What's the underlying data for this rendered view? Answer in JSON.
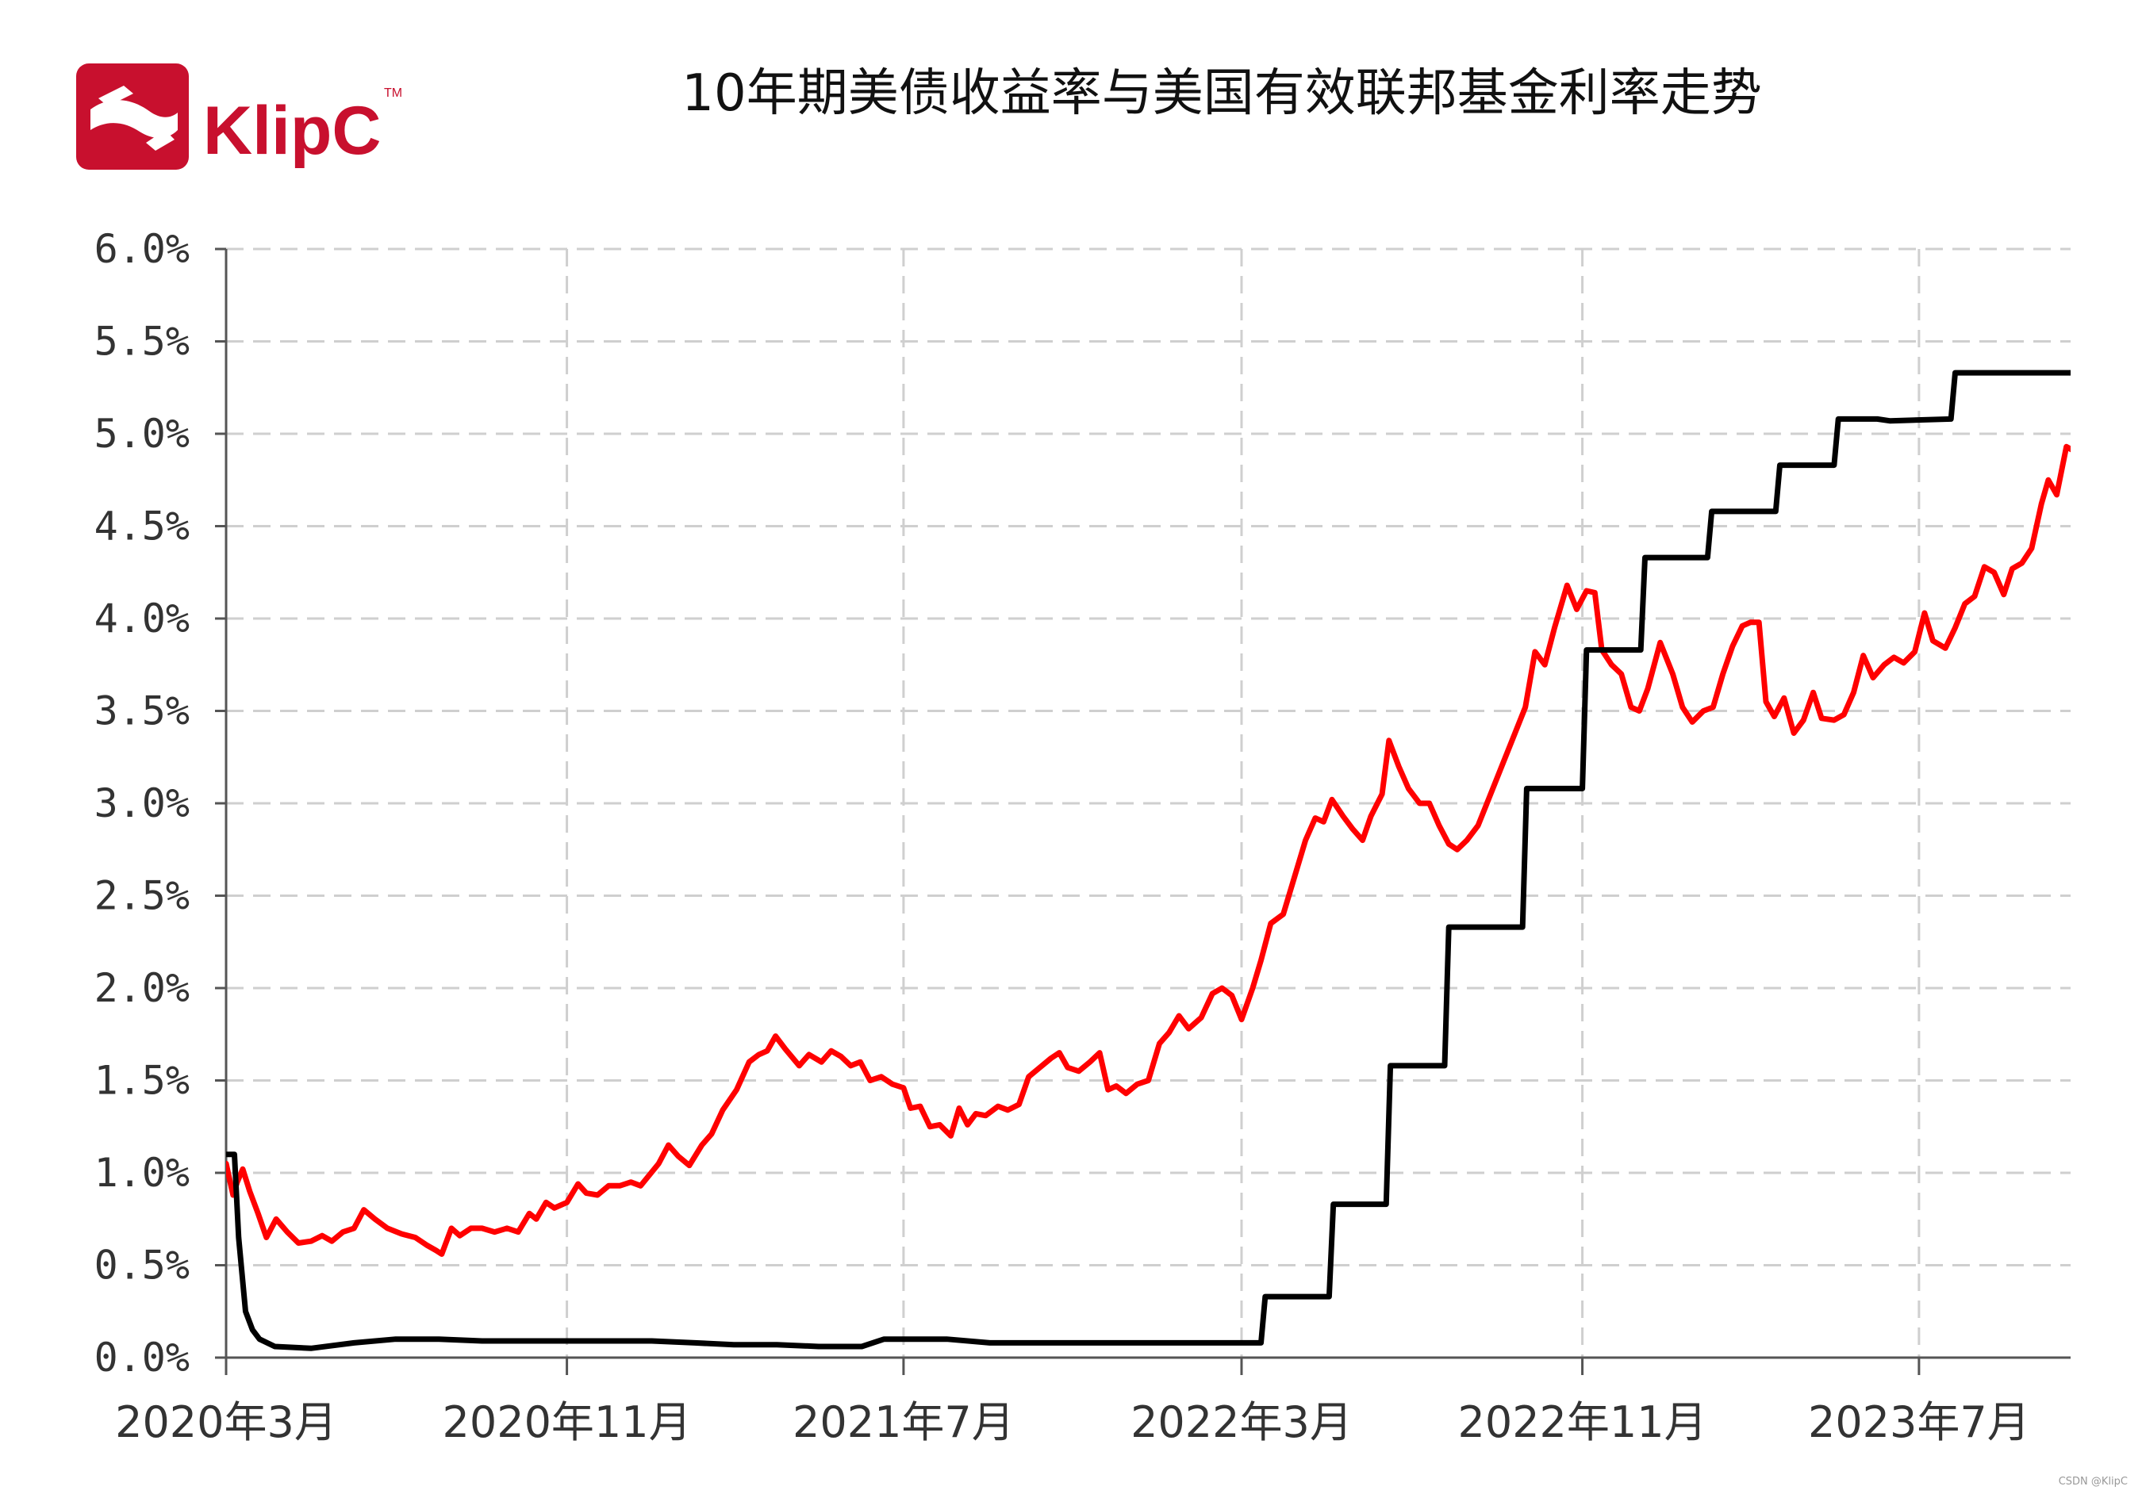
{
  "logo": {
    "text": "KlipC",
    "tm": "TM",
    "icon": "klipc-logo-icon",
    "color": "#c8102e"
  },
  "chart_data": {
    "type": "line",
    "title": "10年期美债收益率与美国有效联邦基金利率走势",
    "xlabel": "",
    "ylabel": "",
    "xlim": [
      "2020-03-01",
      "2023-10-18"
    ],
    "ylim": [
      0,
      6.0
    ],
    "y_ticks": [
      {
        "value": 0.0,
        "label": "0.0%"
      },
      {
        "value": 0.5,
        "label": "0.5%"
      },
      {
        "value": 1.0,
        "label": "1.0%"
      },
      {
        "value": 1.5,
        "label": "1.5%"
      },
      {
        "value": 2.0,
        "label": "2.0%"
      },
      {
        "value": 2.5,
        "label": "2.5%"
      },
      {
        "value": 3.0,
        "label": "3.0%"
      },
      {
        "value": 3.5,
        "label": "3.5%"
      },
      {
        "value": 4.0,
        "label": "4.0%"
      },
      {
        "value": 4.5,
        "label": "4.5%"
      },
      {
        "value": 5.0,
        "label": "5.0%"
      },
      {
        "value": 5.5,
        "label": "5.5%"
      },
      {
        "value": 6.0,
        "label": "6.0%"
      }
    ],
    "x_ticks": [
      {
        "date": "2020-03-01",
        "label": "2020年3月"
      },
      {
        "date": "2020-11-01",
        "label": "2020年11月"
      },
      {
        "date": "2021-07-01",
        "label": "2021年7月"
      },
      {
        "date": "2022-03-01",
        "label": "2022年3月"
      },
      {
        "date": "2022-11-01",
        "label": "2022年11月"
      },
      {
        "date": "2023-07-01",
        "label": "2023年7月"
      }
    ],
    "grid": true,
    "series": [
      {
        "color": "#ff0000",
        "points": [
          [
            "2020-03-01",
            1.05
          ],
          [
            "2020-03-06",
            0.88
          ],
          [
            "2020-03-09",
            0.95
          ],
          [
            "2020-03-13",
            1.02
          ],
          [
            "2020-03-18",
            0.9
          ],
          [
            "2020-03-24",
            0.78
          ],
          [
            "2020-03-30",
            0.65
          ],
          [
            "2020-04-06",
            0.75
          ],
          [
            "2020-04-14",
            0.68
          ],
          [
            "2020-04-22",
            0.62
          ],
          [
            "2020-05-01",
            0.63
          ],
          [
            "2020-05-09",
            0.66
          ],
          [
            "2020-05-16",
            0.63
          ],
          [
            "2020-05-24",
            0.68
          ],
          [
            "2020-06-01",
            0.7
          ],
          [
            "2020-06-08",
            0.8
          ],
          [
            "2020-06-16",
            0.75
          ],
          [
            "2020-06-25",
            0.7
          ],
          [
            "2020-07-05",
            0.67
          ],
          [
            "2020-07-15",
            0.65
          ],
          [
            "2020-07-23",
            0.61
          ],
          [
            "2020-07-30",
            0.58
          ],
          [
            "2020-08-03",
            0.56
          ],
          [
            "2020-08-10",
            0.7
          ],
          [
            "2020-08-16",
            0.66
          ],
          [
            "2020-08-24",
            0.7
          ],
          [
            "2020-09-01",
            0.7
          ],
          [
            "2020-09-10",
            0.68
          ],
          [
            "2020-09-19",
            0.7
          ],
          [
            "2020-09-27",
            0.68
          ],
          [
            "2020-10-05",
            0.78
          ],
          [
            "2020-10-10",
            0.75
          ],
          [
            "2020-10-17",
            0.84
          ],
          [
            "2020-10-23",
            0.81
          ],
          [
            "2020-11-01",
            0.84
          ],
          [
            "2020-11-09",
            0.94
          ],
          [
            "2020-11-15",
            0.89
          ],
          [
            "2020-11-23",
            0.88
          ],
          [
            "2020-12-01",
            0.93
          ],
          [
            "2020-12-09",
            0.93
          ],
          [
            "2020-12-17",
            0.95
          ],
          [
            "2020-12-24",
            0.93
          ],
          [
            "2021-01-06",
            1.05
          ],
          [
            "2021-01-13",
            1.15
          ],
          [
            "2021-01-20",
            1.09
          ],
          [
            "2021-01-28",
            1.04
          ],
          [
            "2021-02-06",
            1.15
          ],
          [
            "2021-02-13",
            1.21
          ],
          [
            "2021-02-21",
            1.34
          ],
          [
            "2021-03-03",
            1.45
          ],
          [
            "2021-03-12",
            1.6
          ],
          [
            "2021-03-19",
            1.64
          ],
          [
            "2021-03-25",
            1.66
          ],
          [
            "2021-03-31",
            1.74
          ],
          [
            "2021-04-07",
            1.67
          ],
          [
            "2021-04-17",
            1.58
          ],
          [
            "2021-04-24",
            1.64
          ],
          [
            "2021-05-03",
            1.6
          ],
          [
            "2021-05-10",
            1.66
          ],
          [
            "2021-05-17",
            1.63
          ],
          [
            "2021-05-24",
            1.58
          ],
          [
            "2021-05-31",
            1.6
          ],
          [
            "2021-06-07",
            1.5
          ],
          [
            "2021-06-15",
            1.52
          ],
          [
            "2021-06-23",
            1.48
          ],
          [
            "2021-07-01",
            1.46
          ],
          [
            "2021-07-06",
            1.35
          ],
          [
            "2021-07-13",
            1.36
          ],
          [
            "2021-07-20",
            1.25
          ],
          [
            "2021-07-27",
            1.26
          ],
          [
            "2021-08-04",
            1.2
          ],
          [
            "2021-08-10",
            1.35
          ],
          [
            "2021-08-16",
            1.26
          ],
          [
            "2021-08-22",
            1.32
          ],
          [
            "2021-08-29",
            1.31
          ],
          [
            "2021-09-07",
            1.36
          ],
          [
            "2021-09-14",
            1.34
          ],
          [
            "2021-09-22",
            1.37
          ],
          [
            "2021-09-29",
            1.52
          ],
          [
            "2021-10-07",
            1.57
          ],
          [
            "2021-10-15",
            1.62
          ],
          [
            "2021-10-21",
            1.65
          ],
          [
            "2021-10-27",
            1.57
          ],
          [
            "2021-11-04",
            1.55
          ],
          [
            "2021-11-12",
            1.6
          ],
          [
            "2021-11-19",
            1.65
          ],
          [
            "2021-11-25",
            1.45
          ],
          [
            "2021-12-01",
            1.47
          ],
          [
            "2021-12-08",
            1.43
          ],
          [
            "2021-12-16",
            1.48
          ],
          [
            "2021-12-24",
            1.5
          ],
          [
            "2022-01-01",
            1.7
          ],
          [
            "2022-01-08",
            1.76
          ],
          [
            "2022-01-15",
            1.85
          ],
          [
            "2022-01-22",
            1.78
          ],
          [
            "2022-01-31",
            1.84
          ],
          [
            "2022-02-08",
            1.97
          ],
          [
            "2022-02-15",
            2.0
          ],
          [
            "2022-02-22",
            1.96
          ],
          [
            "2022-03-01",
            1.83
          ],
          [
            "2022-03-09",
            2.0
          ],
          [
            "2022-03-15",
            2.15
          ],
          [
            "2022-03-22",
            2.35
          ],
          [
            "2022-03-31",
            2.4
          ],
          [
            "2022-04-08",
            2.6
          ],
          [
            "2022-04-16",
            2.8
          ],
          [
            "2022-04-23",
            2.92
          ],
          [
            "2022-04-29",
            2.9
          ],
          [
            "2022-05-05",
            3.02
          ],
          [
            "2022-05-13",
            2.93
          ],
          [
            "2022-05-20",
            2.86
          ],
          [
            "2022-05-27",
            2.8
          ],
          [
            "2022-06-02",
            2.93
          ],
          [
            "2022-06-10",
            3.05
          ],
          [
            "2022-06-15",
            3.34
          ],
          [
            "2022-06-22",
            3.2
          ],
          [
            "2022-06-29",
            3.08
          ],
          [
            "2022-07-07",
            3.0
          ],
          [
            "2022-07-14",
            3.0
          ],
          [
            "2022-07-21",
            2.88
          ],
          [
            "2022-07-28",
            2.78
          ],
          [
            "2022-08-03",
            2.75
          ],
          [
            "2022-08-10",
            2.8
          ],
          [
            "2022-08-18",
            2.88
          ],
          [
            "2022-08-26",
            3.03
          ],
          [
            "2022-09-04",
            3.2
          ],
          [
            "2022-09-12",
            3.35
          ],
          [
            "2022-09-21",
            3.52
          ],
          [
            "2022-09-28",
            3.82
          ],
          [
            "2022-10-05",
            3.75
          ],
          [
            "2022-10-12",
            3.95
          ],
          [
            "2022-10-21",
            4.18
          ],
          [
            "2022-10-28",
            4.05
          ],
          [
            "2022-11-04",
            4.15
          ],
          [
            "2022-11-10",
            4.14
          ],
          [
            "2022-11-15",
            3.83
          ],
          [
            "2022-11-22",
            3.75
          ],
          [
            "2022-11-29",
            3.7
          ],
          [
            "2022-12-06",
            3.52
          ],
          [
            "2022-12-12",
            3.5
          ],
          [
            "2022-12-18",
            3.62
          ],
          [
            "2022-12-27",
            3.87
          ],
          [
            "2023-01-05",
            3.7
          ],
          [
            "2023-01-12",
            3.52
          ],
          [
            "2023-01-19",
            3.44
          ],
          [
            "2023-01-27",
            3.5
          ],
          [
            "2023-02-03",
            3.52
          ],
          [
            "2023-02-10",
            3.7
          ],
          [
            "2023-02-17",
            3.85
          ],
          [
            "2023-02-24",
            3.96
          ],
          [
            "2023-03-02",
            3.98
          ],
          [
            "2023-03-08",
            3.98
          ],
          [
            "2023-03-13",
            3.55
          ],
          [
            "2023-03-19",
            3.47
          ],
          [
            "2023-03-26",
            3.57
          ],
          [
            "2023-04-02",
            3.38
          ],
          [
            "2023-04-09",
            3.45
          ],
          [
            "2023-04-16",
            3.6
          ],
          [
            "2023-04-22",
            3.46
          ],
          [
            "2023-05-01",
            3.45
          ],
          [
            "2023-05-08",
            3.48
          ],
          [
            "2023-05-15",
            3.6
          ],
          [
            "2023-05-22",
            3.8
          ],
          [
            "2023-05-29",
            3.68
          ],
          [
            "2023-06-06",
            3.75
          ],
          [
            "2023-06-13",
            3.79
          ],
          [
            "2023-06-20",
            3.76
          ],
          [
            "2023-06-28",
            3.82
          ],
          [
            "2023-07-05",
            4.03
          ],
          [
            "2023-07-11",
            3.88
          ],
          [
            "2023-07-20",
            3.84
          ],
          [
            "2023-07-27",
            3.95
          ],
          [
            "2023-08-03",
            4.08
          ],
          [
            "2023-08-10",
            4.12
          ],
          [
            "2023-08-17",
            4.28
          ],
          [
            "2023-08-24",
            4.25
          ],
          [
            "2023-08-31",
            4.13
          ],
          [
            "2023-09-06",
            4.27
          ],
          [
            "2023-09-13",
            4.3
          ],
          [
            "2023-09-20",
            4.38
          ],
          [
            "2023-09-27",
            4.62
          ],
          [
            "2023-10-02",
            4.75
          ],
          [
            "2023-10-08",
            4.67
          ],
          [
            "2023-10-15",
            4.93
          ],
          [
            "2023-10-22",
            4.9
          ],
          [
            "2023-10-29",
            4.82
          ],
          [
            "2023-11-05",
            4.67
          ]
        ]
      },
      {
        "color": "#000000",
        "points": [
          [
            "2020-03-01",
            1.1
          ],
          [
            "2020-03-07",
            1.1
          ],
          [
            "2020-03-10",
            0.65
          ],
          [
            "2020-03-15",
            0.25
          ],
          [
            "2020-03-20",
            0.15
          ],
          [
            "2020-03-25",
            0.1
          ],
          [
            "2020-04-05",
            0.06
          ],
          [
            "2020-05-01",
            0.05
          ],
          [
            "2020-06-01",
            0.08
          ],
          [
            "2020-07-01",
            0.1
          ],
          [
            "2020-08-01",
            0.1
          ],
          [
            "2020-09-01",
            0.09
          ],
          [
            "2020-10-01",
            0.09
          ],
          [
            "2020-11-01",
            0.09
          ],
          [
            "2020-12-01",
            0.09
          ],
          [
            "2021-01-01",
            0.09
          ],
          [
            "2021-02-01",
            0.08
          ],
          [
            "2021-03-01",
            0.07
          ],
          [
            "2021-04-01",
            0.07
          ],
          [
            "2021-05-01",
            0.06
          ],
          [
            "2021-06-01",
            0.06
          ],
          [
            "2021-06-17",
            0.1
          ],
          [
            "2021-07-01",
            0.1
          ],
          [
            "2021-08-01",
            0.1
          ],
          [
            "2021-09-01",
            0.08
          ],
          [
            "2021-10-01",
            0.08
          ],
          [
            "2021-11-01",
            0.08
          ],
          [
            "2021-12-01",
            0.08
          ],
          [
            "2022-01-01",
            0.08
          ],
          [
            "2022-02-01",
            0.08
          ],
          [
            "2022-03-15",
            0.08
          ],
          [
            "2022-03-18",
            0.33
          ],
          [
            "2022-05-03",
            0.33
          ],
          [
            "2022-05-06",
            0.83
          ],
          [
            "2022-06-13",
            0.83
          ],
          [
            "2022-06-16",
            1.58
          ],
          [
            "2022-07-25",
            1.58
          ],
          [
            "2022-07-28",
            2.33
          ],
          [
            "2022-09-19",
            2.33
          ],
          [
            "2022-09-22",
            3.08
          ],
          [
            "2022-11-01",
            3.08
          ],
          [
            "2022-11-04",
            3.83
          ],
          [
            "2022-12-13",
            3.83
          ],
          [
            "2022-12-16",
            4.33
          ],
          [
            "2023-01-30",
            4.33
          ],
          [
            "2023-02-02",
            4.58
          ],
          [
            "2023-03-20",
            4.58
          ],
          [
            "2023-03-23",
            4.83
          ],
          [
            "2023-05-01",
            4.83
          ],
          [
            "2023-05-04",
            5.08
          ],
          [
            "2023-06-01",
            5.08
          ],
          [
            "2023-06-10",
            5.07
          ],
          [
            "2023-07-24",
            5.08
          ],
          [
            "2023-07-27",
            5.33
          ],
          [
            "2023-11-05",
            5.33
          ]
        ]
      }
    ]
  }
}
